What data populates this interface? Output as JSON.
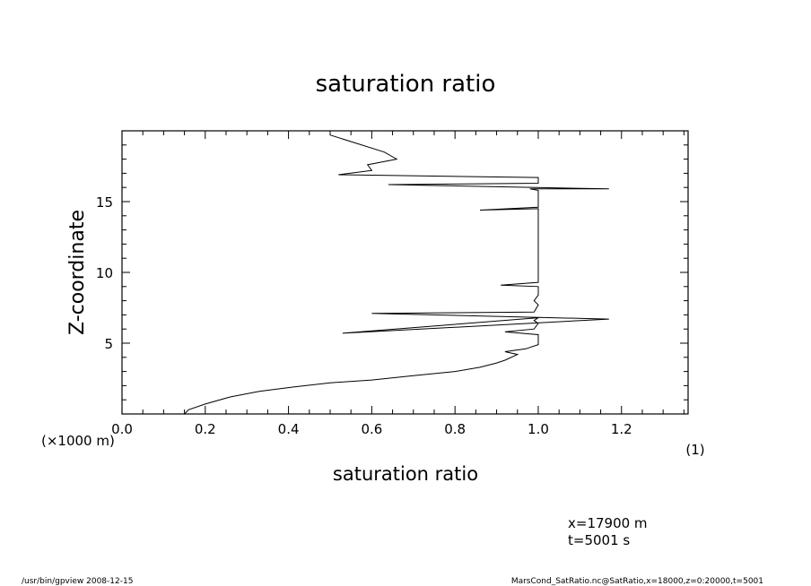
{
  "chart_data": {
    "type": "line",
    "title": "saturation ratio",
    "xlabel": "saturation ratio",
    "ylabel": "Z-coordinate",
    "x_unit_label": "(1)",
    "y_unit_label": "(×1000 m)",
    "xlim": [
      0.0,
      1.36
    ],
    "ylim": [
      0,
      20
    ],
    "x_ticks": [
      0.0,
      0.2,
      0.4,
      0.6,
      0.8,
      1.0,
      1.2
    ],
    "x_tick_labels": [
      "0.0",
      "0.2",
      "0.4",
      "0.6",
      "0.8",
      "1.0",
      "1.2"
    ],
    "y_ticks": [
      5,
      10,
      15
    ],
    "y_tick_labels": [
      "5",
      "10",
      "15"
    ],
    "grid": false,
    "series": [
      {
        "x": [
          0.15,
          0.16,
          0.2,
          0.26,
          0.33,
          0.41,
          0.5,
          0.6,
          0.7,
          0.8,
          0.86,
          0.9,
          0.92,
          0.95,
          0.92,
          0.97,
          1.0,
          1.0,
          0.92,
          0.99,
          1.0,
          0.99,
          1.0,
          0.53,
          1.17,
          0.6,
          0.99,
          1.0,
          0.99,
          1.0,
          1.0,
          1.0,
          0.91,
          1.0,
          1.0,
          1.0,
          0.86,
          1.0,
          1.0,
          0.98,
          1.17,
          0.64,
          1.0,
          1.0,
          0.52,
          0.6,
          0.59,
          0.66,
          0.63,
          0.5
        ],
        "y": [
          0.0,
          0.3,
          0.7,
          1.2,
          1.6,
          1.9,
          2.2,
          2.4,
          2.7,
          3.0,
          3.3,
          3.6,
          3.8,
          4.2,
          4.4,
          4.6,
          4.9,
          5.6,
          5.8,
          6.0,
          6.4,
          6.6,
          6.8,
          5.7,
          6.7,
          7.1,
          7.2,
          7.7,
          8.0,
          8.4,
          8.9,
          9.0,
          9.1,
          9.3,
          13.0,
          14.5,
          14.4,
          14.6,
          15.8,
          15.9,
          15.9,
          16.2,
          16.3,
          16.7,
          16.9,
          17.2,
          17.6,
          18.0,
          18.5,
          19.7
        ]
      }
    ],
    "annotations": [
      "x=17900  m",
      "t=5001  s"
    ]
  },
  "footer": {
    "left": "/usr/bin/gpview   2008-12-15",
    "right": "MarsCond_SatRatio.nc@SatRatio,x=18000,z=0:20000,t=5001"
  }
}
